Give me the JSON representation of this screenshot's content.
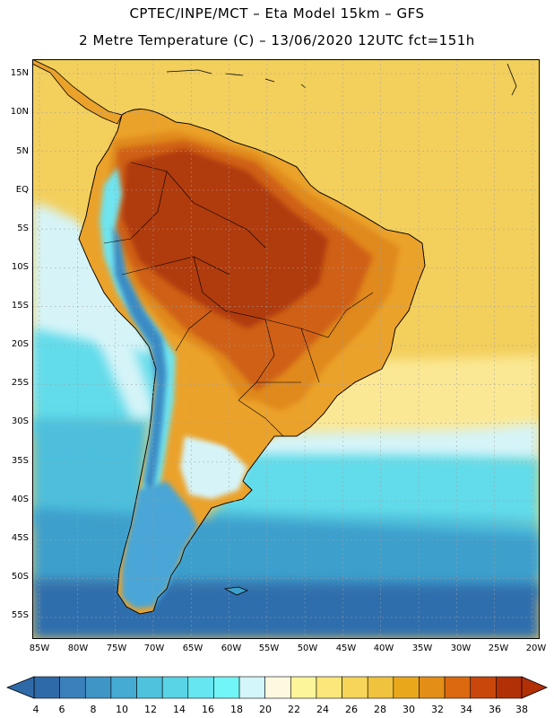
{
  "title": {
    "line1": "CPTEC/INPE/MCT –  Eta Model 15km – GFS",
    "line2": "2 Metre Temperature (C) – 13/06/2020 12UTC fct=151h"
  },
  "map": {
    "region": "South America",
    "variable": "2 Metre Temperature",
    "units": "C",
    "lat_labels": [
      "15N",
      "10N",
      "5N",
      "EQ",
      "5S",
      "10S",
      "15S",
      "20S",
      "25S",
      "30S",
      "35S",
      "40S",
      "45S",
      "50S",
      "55S"
    ],
    "lon_labels": [
      "85W",
      "80W",
      "75W",
      "70W",
      "65W",
      "60W",
      "55W",
      "50W",
      "45W",
      "40W",
      "35W",
      "30W",
      "25W",
      "20W"
    ]
  },
  "colorbar": {
    "labels": [
      "4",
      "6",
      "8",
      "10",
      "12",
      "14",
      "16",
      "18",
      "20",
      "22",
      "24",
      "26",
      "28",
      "30",
      "32",
      "34",
      "36",
      "38"
    ],
    "colors": [
      "#2f6aa8",
      "#3a80bb",
      "#3f95c6",
      "#45abd2",
      "#4fc2dd",
      "#58d4e6",
      "#66e6f0",
      "#72f5f6",
      "#d2f6fa",
      "#fef8e0",
      "#fdf59a",
      "#fbe77a",
      "#f6d559",
      "#efc33e",
      "#e9a81c",
      "#e38e16",
      "#dc6910",
      "#c9470a",
      "#b23005"
    ],
    "low_arrow_color": "#2f6aa8",
    "high_arrow_color": "#b23005"
  },
  "palette": {
    "ocean_warm": "#f3cf5c",
    "ocean_tropical": "#f6d86a",
    "ocean_subtropical": "#fbe894",
    "ocean_pale": "#d6f4f8",
    "ocean_cyan": "#62dbea",
    "ocean_teal": "#4dbfdc",
    "ocean_blue": "#3d9fcc",
    "ocean_deep": "#2e6ead",
    "land_hot": "#b03a0a",
    "land_warm": "#cf6012",
    "land_orange": "#e0891c",
    "land_amber": "#eba22a",
    "andes_cold": "#3a8bc4",
    "andes_cyan": "#6fe4ef",
    "patagonia": "#4aa6d6",
    "grid": "#a0a0a0",
    "coast": "#000000"
  }
}
